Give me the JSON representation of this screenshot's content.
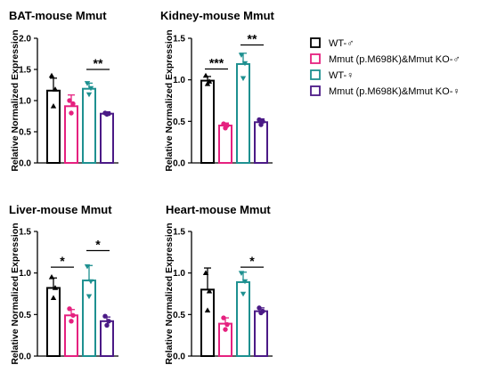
{
  "legend": {
    "items": [
      {
        "label": "WT-♂",
        "color": "#000000"
      },
      {
        "label": "Mmut (p.M698K)&Mmut KO-♂",
        "color": "#e5217f"
      },
      {
        "label": "WT-♀",
        "color": "#1e9090"
      },
      {
        "label": "Mmut (p.M698K)&Mmut KO-♀",
        "color": "#4b1a86"
      }
    ]
  },
  "chart_data": [
    {
      "type": "bar",
      "title": "BAT-mouse Mmut",
      "ylabel": "Relative Normalized Expression",
      "ylim": [
        0,
        2.0
      ],
      "yticks": [
        "0.0",
        "0.5",
        "1.0",
        "1.5",
        "2.0"
      ],
      "values": [
        1.16,
        0.91,
        1.19,
        0.79
      ],
      "errors": [
        0.2,
        0.18,
        0.09,
        0.03
      ],
      "points": [
        [
          1.4,
          1.18,
          0.91
        ],
        [
          1.0,
          0.95,
          0.8
        ],
        [
          1.28,
          1.2,
          1.1
        ],
        [
          0.8,
          0.79,
          0.78
        ]
      ],
      "significance": [
        {
          "groups": [
            2,
            3
          ],
          "label": "**",
          "y": 1.5
        }
      ]
    },
    {
      "type": "bar",
      "title": "Kidney-mouse Mmut",
      "ylabel": "Relative Normalized Expression",
      "ylim": [
        0,
        1.5
      ],
      "yticks": [
        "0.0",
        "0.5",
        "1.0",
        "1.5"
      ],
      "values": [
        0.99,
        0.45,
        1.19,
        0.49
      ],
      "errors": [
        0.05,
        0.03,
        0.13,
        0.04
      ],
      "points": [
        [
          1.05,
          0.98,
          0.95
        ],
        [
          0.47,
          0.45,
          0.42
        ],
        [
          1.3,
          1.2,
          1.02
        ],
        [
          0.52,
          0.5,
          0.46
        ]
      ],
      "significance": [
        {
          "groups": [
            0,
            1
          ],
          "label": "***",
          "y": 1.13
        },
        {
          "groups": [
            2,
            3
          ],
          "label": "**",
          "y": 1.42
        }
      ]
    },
    {
      "type": "bar",
      "title": "Liver-mouse Mmut",
      "ylabel": "Relative Normalized Expression",
      "ylim": [
        0,
        1.5
      ],
      "yticks": [
        "0.0",
        "0.5",
        "1.0",
        "1.5"
      ],
      "values": [
        0.82,
        0.49,
        0.91,
        0.42
      ],
      "errors": [
        0.12,
        0.07,
        0.18,
        0.05
      ],
      "points": [
        [
          0.95,
          0.82,
          0.7
        ],
        [
          0.57,
          0.49,
          0.42
        ],
        [
          1.08,
          0.9,
          0.72
        ],
        [
          0.48,
          0.42,
          0.37
        ]
      ],
      "significance": [
        {
          "groups": [
            0,
            1
          ],
          "label": "*",
          "y": 1.07
        },
        {
          "groups": [
            2,
            3
          ],
          "label": "*",
          "y": 1.27
        }
      ]
    },
    {
      "type": "bar",
      "title": "Heart-mouse Mmut",
      "ylabel": "Relative Normalized Expression",
      "ylim": [
        0,
        1.5
      ],
      "yticks": [
        "0.0",
        "0.5",
        "1.0",
        "1.5"
      ],
      "values": [
        0.8,
        0.39,
        0.89,
        0.54
      ],
      "errors": [
        0.26,
        0.07,
        0.12,
        0.04
      ],
      "points": [
        [
          1.0,
          0.78,
          0.55
        ],
        [
          0.46,
          0.38,
          0.32
        ],
        [
          1.0,
          0.9,
          0.75
        ],
        [
          0.58,
          0.54,
          0.52
        ]
      ],
      "significance": [
        {
          "groups": [
            2,
            3
          ],
          "label": "*",
          "y": 1.07
        }
      ]
    }
  ]
}
